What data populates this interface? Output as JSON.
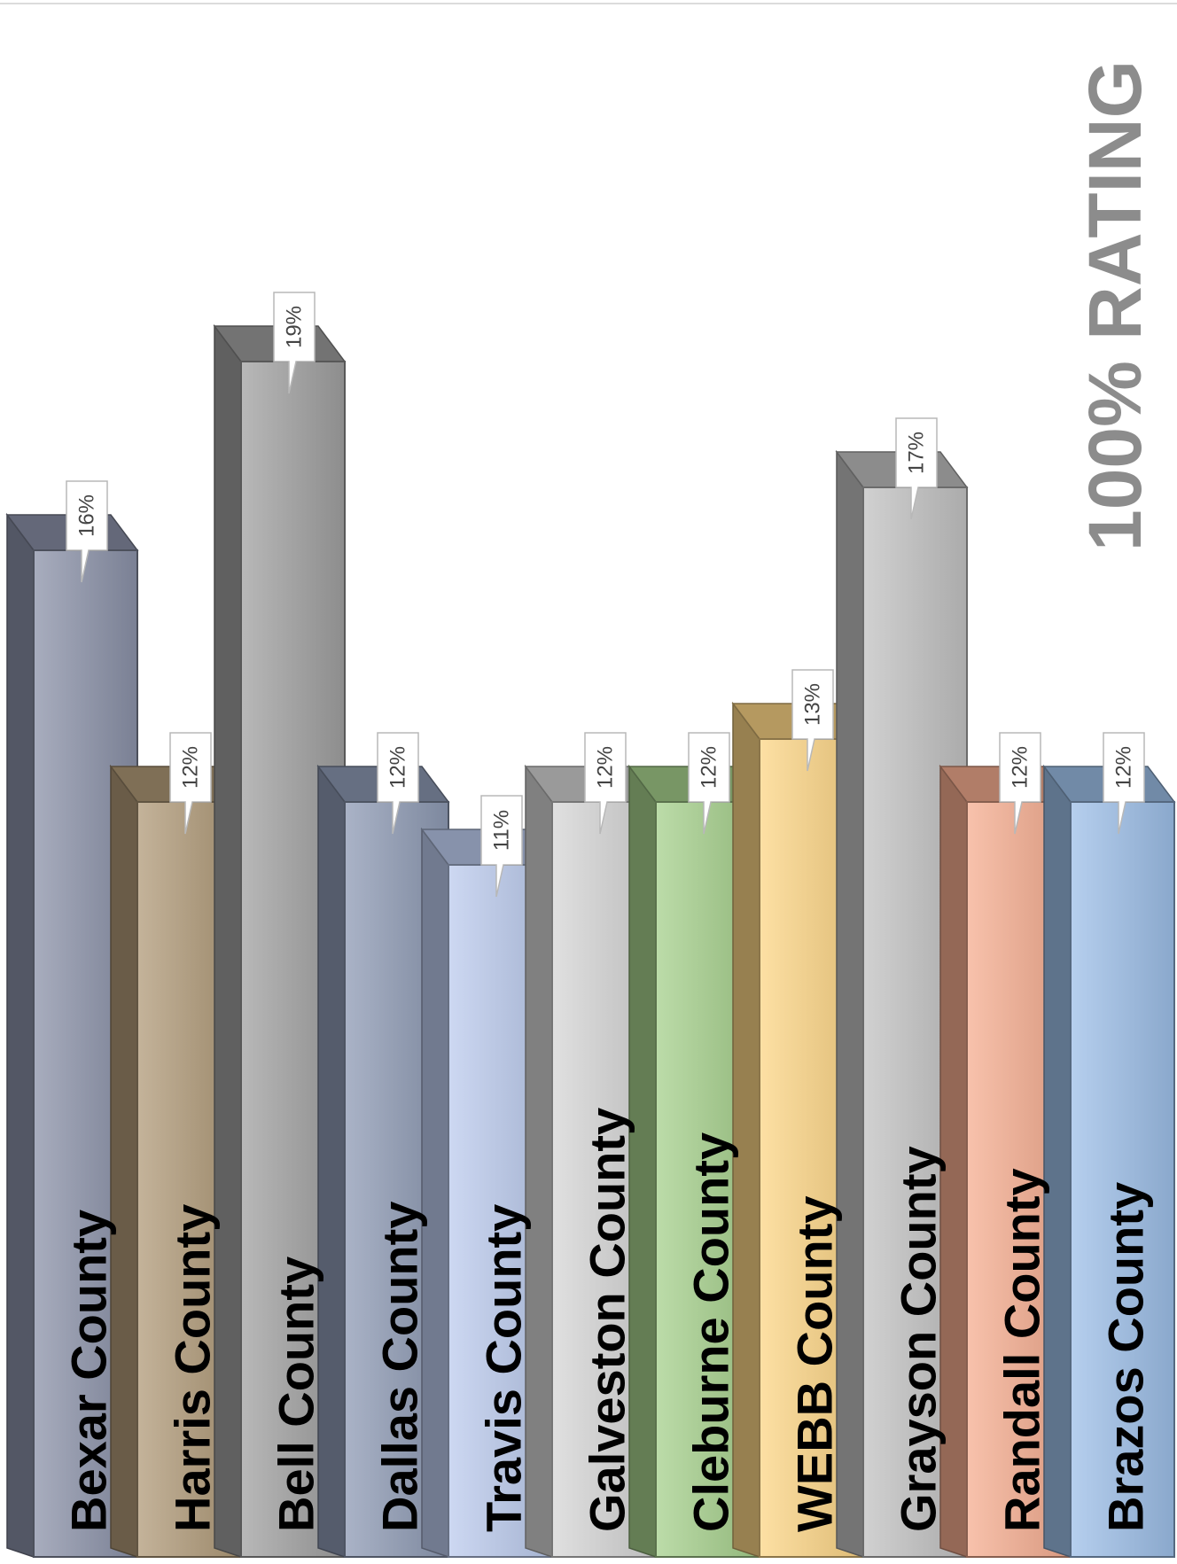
{
  "chart_data": {
    "type": "bar",
    "title": "100% RATING",
    "categories": [
      "Bexar County",
      "Harris County",
      "Bell County",
      "Dallas County",
      "Travis County",
      "Galveston County",
      "Cleburne County",
      "WEBB County",
      "Grayson County",
      "Randall County",
      "Brazos County"
    ],
    "values": [
      16,
      12,
      19,
      12,
      11,
      12,
      12,
      13,
      17,
      12,
      12
    ],
    "data_labels": [
      "16%",
      "12%",
      "19%",
      "12%",
      "11%",
      "12%",
      "12%",
      "13%",
      "17%",
      "12%",
      "12%"
    ],
    "value_format": "percent",
    "grid": false,
    "legend": "none",
    "style": "3d-column",
    "orientation": "rotated-90-clockwise",
    "colors": [
      "#8b91a8",
      "#b09a78",
      "#a0a0a0",
      "#8e9ab4",
      "#bccbee",
      "#d6d6d6",
      "#a6d08c",
      "#fcd585",
      "#c2c2c2",
      "#f6ad90",
      "#9dbfe8"
    ],
    "title_color": "#8c8c8c"
  }
}
